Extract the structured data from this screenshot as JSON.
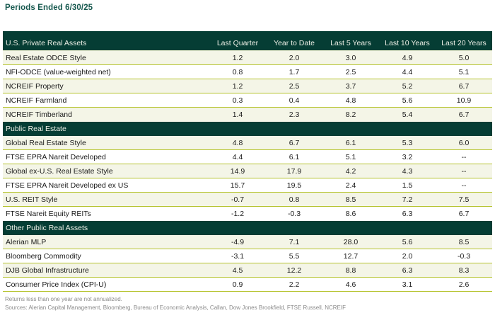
{
  "title": "Periods Ended 6/30/25",
  "colors": {
    "header_green": "#053D34",
    "row_highlight": "#F4F5E7",
    "separator_line": "#B6C32E",
    "title_green": "#17594F",
    "footnote_gray": "#8A8A8A"
  },
  "table": {
    "header_row": {
      "label": "U.S. Private Real Assets",
      "columns": [
        "Last Quarter",
        "Year to Date",
        "Last 5 Years",
        "Last 10 Years",
        "Last 20 Years"
      ]
    },
    "sections": [
      {
        "header": "",
        "rows": [
          {
            "label": "Real Estate ODCE Style",
            "values": [
              "1.2",
              "2.0",
              "3.0",
              "4.9",
              "5.0"
            ]
          },
          {
            "label": "NFI-ODCE (value-weighted net)",
            "values": [
              "0.8",
              "1.7",
              "2.5",
              "4.4",
              "5.1"
            ]
          },
          {
            "label": "NCREIF Property",
            "values": [
              "1.2",
              "2.5",
              "3.7",
              "5.2",
              "6.7"
            ]
          },
          {
            "label": "NCREIF Farmland",
            "values": [
              "0.3",
              "0.4",
              "4.8",
              "5.6",
              "10.9"
            ]
          },
          {
            "label": "NCREIF Timberland",
            "values": [
              "1.4",
              "2.3",
              "8.2",
              "5.4",
              "6.7"
            ]
          }
        ]
      },
      {
        "header": "Public Real Estate",
        "rows": [
          {
            "label": "Global Real Estate Style",
            "values": [
              "4.8",
              "6.7",
              "6.1",
              "5.3",
              "6.0"
            ]
          },
          {
            "label": "FTSE EPRA Nareit Developed",
            "values": [
              "4.4",
              "6.1",
              "5.1",
              "3.2",
              "--"
            ]
          },
          {
            "label": "Global ex-U.S. Real Estate Style",
            "values": [
              "14.9",
              "17.9",
              "4.2",
              "4.3",
              "--"
            ]
          },
          {
            "label": "FTSE EPRA Nareit Developed ex US",
            "values": [
              "15.7",
              "19.5",
              "2.4",
              "1.5",
              "--"
            ]
          },
          {
            "label": "U.S. REIT Style",
            "values": [
              "-0.7",
              "0.8",
              "8.5",
              "7.2",
              "7.5"
            ]
          },
          {
            "label": "FTSE Nareit Equity REITs",
            "values": [
              "-1.2",
              "-0.3",
              "8.6",
              "6.3",
              "6.7"
            ]
          }
        ]
      },
      {
        "header": "Other Public Real Assets",
        "rows": [
          {
            "label": "Alerian MLP",
            "values": [
              "-4.9",
              "7.1",
              "28.0",
              "5.6",
              "8.5"
            ]
          },
          {
            "label": "Bloomberg Commodity",
            "values": [
              "-3.1",
              "5.5",
              "12.7",
              "2.0",
              "-0.3"
            ]
          },
          {
            "label": "DJB Global Infrastructure",
            "values": [
              "4.5",
              "12.2",
              "8.8",
              "6.3",
              "8.3"
            ]
          },
          {
            "label": "Consumer Price Index (CPI-U)",
            "values": [
              "0.9",
              "2.2",
              "4.6",
              "3.1",
              "2.6"
            ]
          }
        ]
      }
    ]
  },
  "footnotes": [
    "Returns less than one year are not annualized.",
    "Sources: Alerian Capital Management, Bloomberg, Bureau of Economic Analysis, Callan, Dow Jones Brookfield, FTSE Russell, NCREIF"
  ]
}
